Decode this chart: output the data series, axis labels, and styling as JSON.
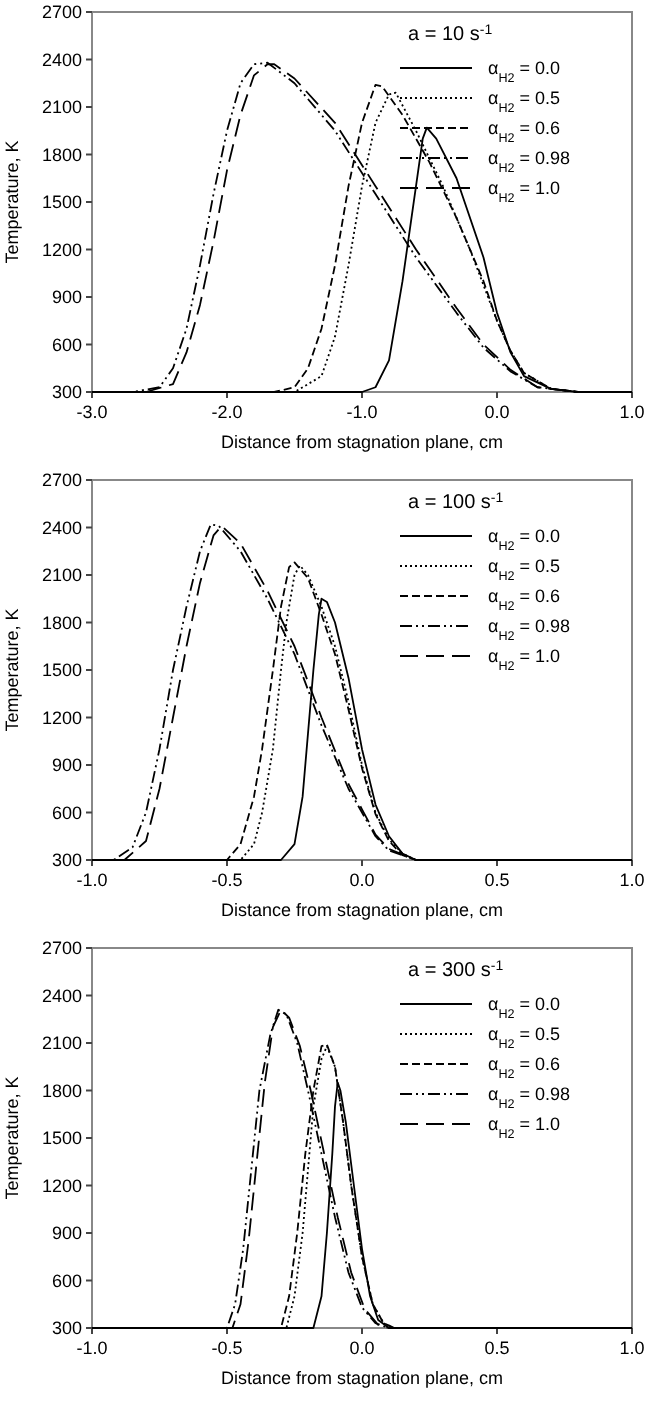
{
  "chart_data": [
    {
      "type": "line",
      "legend_title": "a = 10 s$^{-1}$",
      "xlabel": "Distance from stagnation plane, cm",
      "ylabel": "Temperature, K",
      "xlim": [
        -3,
        1
      ],
      "ylim": [
        300,
        2700
      ],
      "xticks": [
        {
          "value": -3,
          "label": "-3.0"
        },
        {
          "value": -2,
          "label": "-2.0"
        },
        {
          "value": -1,
          "label": "-1.0"
        },
        {
          "value": 0,
          "label": "0.0"
        },
        {
          "value": 1,
          "label": "1.0"
        }
      ],
      "yticks": [
        300,
        600,
        900,
        1200,
        1500,
        1800,
        2100,
        2400,
        2700
      ],
      "legend": "top right",
      "grid": false,
      "marker": "none",
      "series": [
        {
          "name": "α$_{H2}$ = 0.0",
          "color": "#000000",
          "line_style": "solid",
          "x": [
            -3,
            -1,
            -0.9,
            -0.8,
            -0.7,
            -0.6,
            -0.55,
            -0.52,
            -0.45,
            -0.3,
            -0.1,
            0,
            0.1,
            0.2,
            0.4,
            0.6,
            1
          ],
          "values": [
            300,
            300,
            330,
            500,
            1000,
            1600,
            1900,
            1970,
            1900,
            1650,
            1150,
            800,
            550,
            400,
            320,
            300,
            300
          ]
        },
        {
          "name": "α$_{H2}$ = 0.5",
          "color": "#000000",
          "line_style": "dotted",
          "x": [
            -3,
            -1.5,
            -1.3,
            -1.2,
            -1.1,
            -1,
            -0.9,
            -0.8,
            -0.75,
            -0.6,
            -0.4,
            -0.2,
            0,
            0.1,
            0.2,
            0.4,
            0.6,
            1
          ],
          "values": [
            300,
            300,
            400,
            650,
            1100,
            1600,
            2000,
            2180,
            2190,
            1950,
            1600,
            1200,
            750,
            560,
            420,
            320,
            300,
            300
          ]
        },
        {
          "name": "α$_{H2}$ = 0.6",
          "color": "#000000",
          "line_style": "dashed",
          "x": [
            -3,
            -1.65,
            -1.5,
            -1.4,
            -1.3,
            -1.2,
            -1.1,
            -1,
            -0.9,
            -0.85,
            -0.7,
            -0.5,
            -0.3,
            -0.1,
            0,
            0.1,
            0.2,
            0.4,
            0.6,
            1
          ],
          "values": [
            300,
            300,
            330,
            450,
            700,
            1100,
            1600,
            2000,
            2240,
            2230,
            2050,
            1750,
            1400,
            1000,
            750,
            560,
            420,
            320,
            300,
            300
          ]
        },
        {
          "name": "α$_{H2}$ = 0.98",
          "color": "#000000",
          "line_style": "dashdotdot",
          "x": [
            -3,
            -2.7,
            -2.5,
            -2.4,
            -2.3,
            -2.2,
            -2.1,
            -2,
            -1.9,
            -1.8,
            -1.7,
            -1.5,
            -1.2,
            -0.9,
            -0.6,
            -0.3,
            -0.1,
            0.1,
            0.3,
            0.6,
            1
          ],
          "values": [
            300,
            300,
            330,
            450,
            700,
            1100,
            1550,
            1950,
            2250,
            2370,
            2380,
            2250,
            1950,
            1550,
            1150,
            800,
            580,
            430,
            330,
            300,
            300
          ]
        },
        {
          "name": "α$_{H2}$ = 1.0",
          "color": "#000000",
          "line_style": "longdash",
          "x": [
            -3,
            -2.6,
            -2.4,
            -2.3,
            -2.2,
            -2.1,
            -2,
            -1.9,
            -1.8,
            -1.7,
            -1.65,
            -1.5,
            -1.2,
            -0.9,
            -0.6,
            -0.3,
            -0.1,
            0.1,
            0.3,
            0.6,
            1
          ],
          "values": [
            300,
            300,
            350,
            550,
            850,
            1250,
            1700,
            2050,
            2300,
            2370,
            2370,
            2280,
            2000,
            1600,
            1200,
            830,
            600,
            440,
            330,
            300,
            300
          ]
        }
      ]
    },
    {
      "type": "line",
      "legend_title": "a = 100 s$^{-1}$",
      "xlabel": "Distance from stagnation plane, cm",
      "ylabel": "Temperature, K",
      "xlim": [
        -1,
        1
      ],
      "ylim": [
        300,
        2700
      ],
      "xticks": [
        {
          "value": -1,
          "label": "-1.0"
        },
        {
          "value": -0.5,
          "label": "-0.5"
        },
        {
          "value": 0,
          "label": "0.0"
        },
        {
          "value": 0.5,
          "label": "0.5"
        },
        {
          "value": 1,
          "label": "1.0"
        }
      ],
      "yticks": [
        300,
        600,
        900,
        1200,
        1500,
        1800,
        2100,
        2400,
        2700
      ],
      "legend": "top right",
      "grid": false,
      "marker": "none",
      "series": [
        {
          "name": "α$_{H2}$ = 0.0",
          "color": "#000000",
          "line_style": "solid",
          "x": [
            -1,
            -0.3,
            -0.25,
            -0.22,
            -0.2,
            -0.18,
            -0.16,
            -0.15,
            -0.13,
            -0.1,
            -0.05,
            0,
            0.05,
            0.1,
            0.15,
            0.2,
            1
          ],
          "values": [
            300,
            300,
            400,
            700,
            1100,
            1500,
            1850,
            1950,
            1930,
            1800,
            1450,
            1000,
            650,
            450,
            340,
            300,
            300
          ]
        },
        {
          "name": "α$_{H2}$ = 0.5",
          "color": "#000000",
          "line_style": "dotted",
          "x": [
            -1,
            -0.45,
            -0.4,
            -0.37,
            -0.33,
            -0.3,
            -0.28,
            -0.25,
            -0.23,
            -0.2,
            -0.15,
            -0.1,
            -0.05,
            0,
            0.05,
            0.1,
            0.15,
            0.2,
            1
          ],
          "values": [
            300,
            300,
            400,
            600,
            1000,
            1500,
            1800,
            2100,
            2160,
            2100,
            1900,
            1650,
            1300,
            900,
            600,
            430,
            340,
            300,
            300
          ]
        },
        {
          "name": "α$_{H2}$ = 0.6",
          "color": "#000000",
          "line_style": "dashed",
          "x": [
            -1,
            -0.5,
            -0.45,
            -0.4,
            -0.37,
            -0.33,
            -0.3,
            -0.27,
            -0.25,
            -0.2,
            -0.15,
            -0.1,
            -0.05,
            0,
            0.05,
            0.1,
            0.15,
            0.2,
            1
          ],
          "values": [
            300,
            300,
            400,
            700,
            1000,
            1500,
            1900,
            2150,
            2180,
            2080,
            1850,
            1600,
            1250,
            880,
            590,
            420,
            330,
            300,
            300
          ]
        },
        {
          "name": "α$_{H2}$ = 0.98",
          "color": "#000000",
          "line_style": "dashdotdot",
          "x": [
            -1,
            -0.92,
            -0.85,
            -0.8,
            -0.75,
            -0.7,
            -0.65,
            -0.6,
            -0.56,
            -0.53,
            -0.45,
            -0.35,
            -0.25,
            -0.15,
            -0.05,
            0,
            0.05,
            0.1,
            0.2,
            1
          ],
          "values": [
            300,
            300,
            380,
            600,
            1000,
            1500,
            1900,
            2250,
            2420,
            2410,
            2250,
            1950,
            1600,
            1150,
            750,
            600,
            450,
            360,
            300,
            300
          ]
        },
        {
          "name": "α$_{H2}$ = 1.0",
          "color": "#000000",
          "line_style": "longdash",
          "x": [
            -1,
            -0.88,
            -0.8,
            -0.75,
            -0.7,
            -0.65,
            -0.6,
            -0.55,
            -0.52,
            -0.45,
            -0.35,
            -0.25,
            -0.15,
            -0.05,
            0,
            0.05,
            0.1,
            0.2,
            1
          ],
          "values": [
            300,
            300,
            420,
            750,
            1200,
            1650,
            2050,
            2350,
            2410,
            2300,
            2000,
            1650,
            1200,
            780,
            620,
            460,
            370,
            300,
            300
          ]
        }
      ]
    },
    {
      "type": "line",
      "legend_title": "a = 300 s$^{-1}$",
      "xlabel": "Distance from stagnation plane, cm",
      "ylabel": "Temperature, K",
      "xlim": [
        -1,
        1
      ],
      "ylim": [
        300,
        2700
      ],
      "xticks": [
        {
          "value": -1,
          "label": "-1.0"
        },
        {
          "value": -0.5,
          "label": "-0.5"
        },
        {
          "value": 0,
          "label": "0.0"
        },
        {
          "value": 0.5,
          "label": "0.5"
        },
        {
          "value": 1,
          "label": "1.0"
        }
      ],
      "yticks": [
        300,
        600,
        900,
        1200,
        1500,
        1800,
        2100,
        2400,
        2700
      ],
      "legend": "top right",
      "grid": false,
      "marker": "none",
      "series": [
        {
          "name": "α$_{H2}$ = 0.0",
          "color": "#000000",
          "line_style": "solid",
          "x": [
            -1,
            -0.18,
            -0.15,
            -0.13,
            -0.11,
            -0.1,
            -0.09,
            -0.08,
            -0.06,
            -0.03,
            0,
            0.03,
            0.06,
            0.1,
            1
          ],
          "values": [
            300,
            300,
            500,
            900,
            1400,
            1700,
            1850,
            1800,
            1600,
            1200,
            800,
            500,
            350,
            300,
            300
          ]
        },
        {
          "name": "α$_{H2}$ = 0.5",
          "color": "#000000",
          "line_style": "dotted",
          "x": [
            -1,
            -0.28,
            -0.25,
            -0.22,
            -0.2,
            -0.18,
            -0.15,
            -0.13,
            -0.1,
            -0.07,
            -0.04,
            0,
            0.04,
            0.08,
            0.12,
            1
          ],
          "values": [
            300,
            300,
            500,
            900,
            1300,
            1700,
            2000,
            2080,
            1950,
            1600,
            1200,
            750,
            450,
            330,
            300,
            300
          ]
        },
        {
          "name": "α$_{H2}$ = 0.6",
          "color": "#000000",
          "line_style": "dashed",
          "x": [
            -1,
            -0.3,
            -0.27,
            -0.24,
            -0.21,
            -0.18,
            -0.15,
            -0.13,
            -0.1,
            -0.07,
            -0.04,
            0,
            0.04,
            0.08,
            0.12,
            1
          ],
          "values": [
            300,
            300,
            500,
            900,
            1400,
            1800,
            2080,
            2090,
            1950,
            1600,
            1200,
            750,
            450,
            330,
            300,
            300
          ]
        },
        {
          "name": "α$_{H2}$ = 0.98",
          "color": "#000000",
          "line_style": "dashdotdot",
          "x": [
            -1,
            -0.5,
            -0.47,
            -0.44,
            -0.41,
            -0.38,
            -0.34,
            -0.31,
            -0.28,
            -0.24,
            -0.2,
            -0.15,
            -0.1,
            -0.05,
            0,
            0.05,
            0.1,
            1
          ],
          "values": [
            300,
            300,
            450,
            800,
            1300,
            1800,
            2150,
            2310,
            2280,
            2100,
            1800,
            1400,
            1000,
            650,
            430,
            330,
            300,
            300
          ]
        },
        {
          "name": "α$_{H2}$ = 1.0",
          "color": "#000000",
          "line_style": "longdash",
          "x": [
            -1,
            -0.48,
            -0.45,
            -0.42,
            -0.39,
            -0.36,
            -0.33,
            -0.3,
            -0.27,
            -0.23,
            -0.19,
            -0.14,
            -0.09,
            -0.04,
            0.01,
            0.06,
            0.1,
            1
          ],
          "values": [
            300,
            300,
            450,
            850,
            1350,
            1850,
            2200,
            2310,
            2260,
            2080,
            1800,
            1400,
            1000,
            650,
            420,
            320,
            300,
            300
          ]
        }
      ]
    }
  ]
}
